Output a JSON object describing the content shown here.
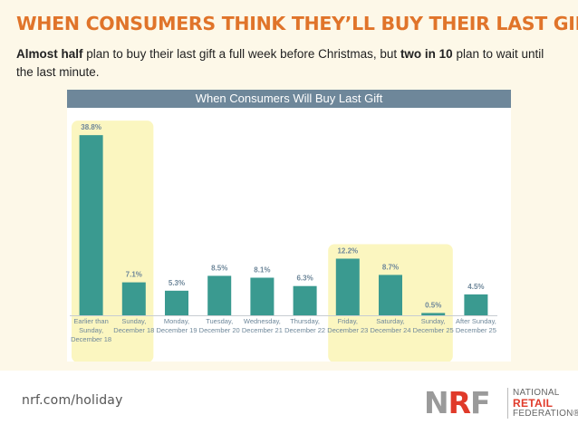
{
  "headline": "WHEN CONSUMERS THINK THEY’LL BUY THEIR LAST GIFT",
  "subtitle": {
    "bold1": "Almost half",
    "text1": " plan to buy their last gift a full week before Christmas, but ",
    "bold2": "two in 10",
    "text2": " plan to wait until the last minute."
  },
  "chart_data": {
    "type": "bar",
    "title": "When Consumers Will Buy Last Gift",
    "categories": [
      [
        "Earlier than",
        "Sunday,",
        "December 18"
      ],
      [
        "Sunday,",
        "December 18"
      ],
      [
        "Monday,",
        "December 19"
      ],
      [
        "Tuesday,",
        "December 20"
      ],
      [
        "Wednesday,",
        "December 21"
      ],
      [
        "Thursday,",
        "December 22"
      ],
      [
        "Friday,",
        "December 23"
      ],
      [
        "Saturday,",
        "December 24"
      ],
      [
        "Sunday,",
        "December 25"
      ],
      [
        "After Sunday,",
        "December 25"
      ]
    ],
    "values": [
      38.8,
      7.1,
      5.3,
      8.5,
      8.1,
      6.3,
      12.2,
      8.7,
      0.5,
      4.5
    ],
    "value_labels": [
      "38.8%",
      "7.1%",
      "5.3%",
      "8.5%",
      "8.1%",
      "6.3%",
      "12.2%",
      "8.7%",
      "0.5%",
      "4.5%"
    ],
    "ylim": [
      0,
      40
    ],
    "highlight_groups": [
      [
        0,
        1
      ],
      [
        6,
        8
      ]
    ],
    "colors": {
      "bar": "#3a9a90",
      "highlight": "#fbf6c0",
      "label": "#6e879a",
      "axis": "#c8cdd2"
    }
  },
  "footer": {
    "url": "nrf.com/holiday",
    "logo": {
      "letters": [
        "N",
        "R",
        "F"
      ],
      "line1": "NATIONAL",
      "line2": "RETAIL",
      "line3": "FEDERATION",
      "mark": "®"
    }
  }
}
